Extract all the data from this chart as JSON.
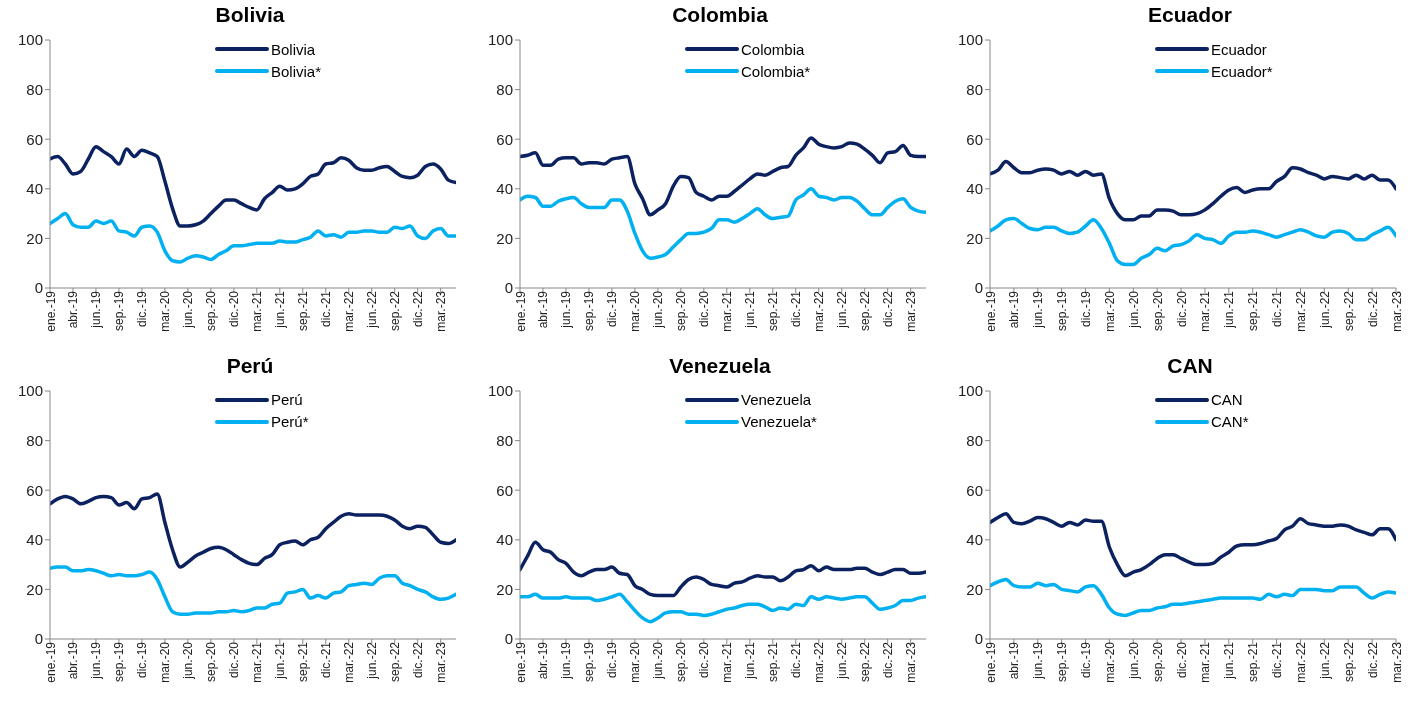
{
  "chart_data": [
    {
      "type": "line",
      "title": "Bolivia",
      "categories": [
        "ene.-19",
        null,
        null,
        "abr.-19",
        null,
        null,
        "jun.-19",
        null,
        null,
        "sep.-19",
        null,
        null,
        "dic.-19",
        null,
        null,
        "mar.-20",
        null,
        null,
        "jun.-20",
        null,
        null,
        "sep.-20",
        null,
        null,
        "dic.-20",
        null,
        null,
        "mar.-21",
        null,
        null,
        "jun.-21",
        null,
        null,
        "sep.-21",
        null,
        null,
        "dic.-21",
        null,
        null,
        "mar.-22",
        null,
        null,
        "jun.-22",
        null,
        null,
        "sep.-22",
        null,
        null,
        "dic.-22",
        null,
        null,
        "mar.-23",
        null,
        null
      ],
      "ylim": [
        0,
        100
      ],
      "yticks": [
        0,
        20,
        40,
        60,
        80,
        100
      ],
      "legend": "top",
      "series": [
        {
          "name": "Bolivia",
          "color": "#0b2160",
          "values": [
            52,
            53,
            50,
            46,
            47,
            52,
            57,
            55,
            53,
            50,
            56,
            53,
            55.5,
            54.5,
            53,
            43,
            32,
            25,
            25,
            25.5,
            27,
            30,
            33,
            35.5,
            35.5,
            34,
            32.5,
            31.5,
            36,
            38.5,
            41,
            39.5,
            40,
            42,
            45,
            46,
            50,
            50.5,
            52.5,
            51.5,
            48.5,
            47.5,
            47.5,
            48.5,
            49,
            47,
            45,
            44.5,
            45.5,
            49,
            50,
            48,
            43.5,
            42.5
          ]
        },
        {
          "name": "Bolivia*",
          "color": "#00b0f0",
          "values": [
            26,
            28,
            30,
            25.5,
            24.5,
            24.5,
            27,
            26,
            27,
            23,
            22.5,
            21,
            24.5,
            25,
            22.5,
            15,
            11,
            10.5,
            12,
            13,
            12.5,
            11.5,
            13.5,
            15,
            17,
            17,
            17.5,
            18,
            18,
            18,
            19,
            18.5,
            18.5,
            19.5,
            20.5,
            23,
            21,
            21.5,
            20.5,
            22.5,
            22.5,
            23,
            23,
            22.5,
            22.5,
            24.5,
            24,
            25,
            21,
            20,
            23,
            24,
            21,
            21
          ]
        }
      ]
    },
    {
      "type": "line",
      "title": "Colombia",
      "categories": [
        "ene.-19",
        null,
        null,
        "abr.-19",
        null,
        null,
        "jun.-19",
        null,
        null,
        "sep.-19",
        null,
        null,
        "dic.-19",
        null,
        null,
        "mar.-20",
        null,
        null,
        "jun.-20",
        null,
        null,
        "sep.-20",
        null,
        null,
        "dic.-20",
        null,
        null,
        "mar.-21",
        null,
        null,
        "jun.-21",
        null,
        null,
        "sep.-21",
        null,
        null,
        "dic.-21",
        null,
        null,
        "mar.-22",
        null,
        null,
        "jun.-22",
        null,
        null,
        "sep.-22",
        null,
        null,
        "dic.-22",
        null,
        null,
        "mar.-23",
        null,
        null
      ],
      "ylim": [
        0,
        100
      ],
      "yticks": [
        0,
        20,
        40,
        60,
        80,
        100
      ],
      "legend": "top",
      "series": [
        {
          "name": "Colombia",
          "color": "#0b2160",
          "values": [
            53,
            53.5,
            54.5,
            49.5,
            49.5,
            52,
            52.5,
            52.5,
            50,
            50.5,
            50.5,
            50,
            52,
            52.5,
            53,
            42,
            36,
            29.5,
            31.5,
            34,
            41,
            45,
            44.5,
            38.5,
            37,
            35.5,
            37,
            37,
            39,
            41.5,
            44,
            46,
            45.5,
            47,
            48.5,
            49,
            53.5,
            56.5,
            60.5,
            58,
            57,
            56.5,
            57,
            58.5,
            58,
            56,
            53.5,
            50.5,
            54.5,
            55,
            57.5,
            53.5,
            53,
            53
          ]
        },
        {
          "name": "Colombia*",
          "color": "#00b0f0",
          "values": [
            35.5,
            37,
            36.5,
            33,
            33,
            35,
            36,
            36.5,
            34,
            32.5,
            32.5,
            32.5,
            35.5,
            35.5,
            31,
            22,
            15,
            12,
            12.5,
            13.5,
            16.5,
            19.5,
            22,
            22,
            22.5,
            24,
            27.5,
            27.5,
            26.5,
            28,
            30,
            32,
            29.5,
            28,
            28.5,
            29,
            35.5,
            37.5,
            40,
            37,
            36.5,
            35.5,
            36.5,
            36.5,
            35,
            32,
            29.5,
            29.5,
            32.5,
            35,
            36,
            32.5,
            31,
            30.5
          ]
        }
      ]
    },
    {
      "type": "line",
      "title": "Ecuador",
      "categories": [
        "ene.-19",
        null,
        null,
        "abr.-19",
        null,
        null,
        "jun.-19",
        null,
        null,
        "sep.-19",
        null,
        null,
        "dic.-19",
        null,
        null,
        "mar.-20",
        null,
        null,
        "jun.-20",
        null,
        null,
        "sep.-20",
        null,
        null,
        "dic.-20",
        null,
        null,
        "mar.-21",
        null,
        null,
        "jun.-21",
        null,
        null,
        "sep.-21",
        null,
        null,
        "dic.-21",
        null,
        null,
        "mar.-22",
        null,
        null,
        "jun.-22",
        null,
        null,
        "sep.-22",
        null,
        null,
        "dic.-22",
        null,
        null,
        "mar.-23"
      ],
      "ylim": [
        0,
        100
      ],
      "yticks": [
        0,
        20,
        40,
        60,
        80,
        100
      ],
      "legend": "top",
      "series": [
        {
          "name": "Ecuador",
          "color": "#0b2160",
          "values": [
            46,
            47.5,
            51,
            48.5,
            46.5,
            46.5,
            47.5,
            48,
            47.5,
            46,
            47,
            45.5,
            47,
            45.5,
            46,
            36,
            30,
            27.5,
            27.5,
            29,
            29,
            31.5,
            31.5,
            31,
            29.5,
            29.5,
            30,
            31.5,
            34,
            37,
            39.5,
            40.5,
            38.5,
            39.5,
            40,
            40,
            43,
            45,
            48.5,
            48,
            46.5,
            45.5,
            44,
            45,
            44.5,
            44,
            45.5,
            44,
            45.5,
            43.5,
            43.5,
            40
          ]
        },
        {
          "name": "Ecuador*",
          "color": "#00b0f0",
          "values": [
            23,
            25,
            27.5,
            28,
            26,
            24,
            23.5,
            24.5,
            24.5,
            23,
            22,
            22.5,
            25,
            27.5,
            24,
            18,
            11,
            9.5,
            9.5,
            12,
            13.5,
            16,
            15,
            17,
            17.5,
            19,
            21.5,
            20,
            19.5,
            18,
            21,
            22.5,
            22.5,
            23,
            22.5,
            21.5,
            20.5,
            21.5,
            22.5,
            23.5,
            22.5,
            21,
            20.5,
            22.5,
            23,
            22,
            19.5,
            19.5,
            21.5,
            23,
            24.5,
            21
          ]
        }
      ]
    },
    {
      "type": "line",
      "title": "Perú",
      "categories": [
        "ene.-19",
        null,
        null,
        "abr.-19",
        null,
        null,
        "jun.-19",
        null,
        null,
        "sep.-19",
        null,
        null,
        "dic.-19",
        null,
        null,
        "mar.-20",
        null,
        null,
        "jun.-20",
        null,
        null,
        "sep.-20",
        null,
        null,
        "dic.-20",
        null,
        null,
        "mar.-21",
        null,
        null,
        "jun.-21",
        null,
        null,
        "sep.-21",
        null,
        null,
        "dic.-21",
        null,
        null,
        "mar.-22",
        null,
        null,
        "jun.-22",
        null,
        null,
        "sep.-22",
        null,
        null,
        "dic.-22",
        null,
        null,
        "mar.-23",
        null,
        null
      ],
      "ylim": [
        0,
        100
      ],
      "yticks": [
        0,
        20,
        40,
        60,
        80,
        100
      ],
      "legend": "top",
      "series": [
        {
          "name": "Perú",
          "color": "#0b2160",
          "values": [
            54.5,
            56.5,
            57.5,
            56.5,
            54.5,
            55.5,
            57,
            57.5,
            57,
            54,
            55,
            52.5,
            56.5,
            57,
            58.5,
            47,
            36,
            29,
            31,
            33.5,
            35,
            36.5,
            37,
            36,
            34,
            32,
            30.5,
            30,
            32.5,
            34,
            38,
            39,
            39.5,
            38,
            40,
            41,
            44.5,
            47,
            49.5,
            50.5,
            50,
            50,
            50,
            50,
            49.5,
            48,
            45.5,
            44.5,
            45.5,
            45,
            42,
            39,
            38.5,
            40
          ]
        },
        {
          "name": "Perú*",
          "color": "#00b0f0",
          "values": [
            28.5,
            29,
            29,
            27.5,
            27.5,
            28,
            27.5,
            26.5,
            25.5,
            26,
            25.5,
            25.5,
            26,
            27,
            24,
            17,
            11,
            10,
            10,
            10.5,
            10.5,
            10.5,
            11,
            11,
            11.5,
            11,
            11.5,
            12.5,
            12.5,
            14,
            14.5,
            18.5,
            19,
            20,
            16.5,
            17.5,
            16.5,
            18.5,
            19,
            21.5,
            22,
            22.5,
            22,
            24.5,
            25.5,
            25.5,
            22.5,
            21.5,
            20,
            19,
            17,
            16,
            16.5,
            18
          ]
        }
      ]
    },
    {
      "type": "line",
      "title": "Venezuela",
      "categories": [
        "ene.-19",
        null,
        null,
        "abr.-19",
        null,
        null,
        "jun.-19",
        null,
        null,
        "sep.-19",
        null,
        null,
        "dic.-19",
        null,
        null,
        "mar.-20",
        null,
        null,
        "jun.-20",
        null,
        null,
        "sep.-20",
        null,
        null,
        "dic.-20",
        null,
        null,
        "mar.-21",
        null,
        null,
        "jun.-21",
        null,
        null,
        "sep.-21",
        null,
        null,
        "dic.-21",
        null,
        null,
        "mar.-22",
        null,
        null,
        "jun.-22",
        null,
        null,
        "sep.-22",
        null,
        null,
        "dic.-22",
        null,
        null,
        "mar.-23",
        null,
        null
      ],
      "ylim": [
        0,
        100
      ],
      "yticks": [
        0,
        20,
        40,
        60,
        80,
        100
      ],
      "legend": "top",
      "series": [
        {
          "name": "Venezuela",
          "color": "#0b2160",
          "values": [
            28,
            33.5,
            39,
            36,
            35,
            32,
            30.5,
            27,
            25.5,
            27,
            28,
            28,
            29,
            26.5,
            26,
            21.5,
            20,
            18,
            17.5,
            17.5,
            17.5,
            21,
            24,
            25,
            24,
            22,
            21.5,
            21,
            22.5,
            23,
            24.5,
            25.5,
            25,
            25,
            23.5,
            25,
            27.5,
            28,
            29.5,
            27.5,
            29,
            28,
            28,
            28,
            28.5,
            28.5,
            27,
            26,
            27,
            28,
            28,
            26.5,
            26.5,
            27
          ]
        },
        {
          "name": "Venezuela*",
          "color": "#00b0f0",
          "values": [
            17,
            17,
            18,
            16.5,
            16.5,
            16.5,
            17,
            16.5,
            16.5,
            16.5,
            15.5,
            16,
            17,
            18,
            15,
            11.5,
            8.5,
            7,
            8.5,
            10.5,
            11,
            11,
            10,
            10,
            9.5,
            10,
            11,
            12,
            12.5,
            13.5,
            14,
            14,
            13,
            11.5,
            12.5,
            12,
            14,
            13.5,
            17,
            16,
            17,
            16.5,
            16,
            16.5,
            17,
            17,
            14.5,
            12,
            12.5,
            13.5,
            15.5,
            15.5,
            16.5,
            17
          ]
        }
      ]
    },
    {
      "type": "line",
      "title": "CAN",
      "categories": [
        "ene.-19",
        null,
        null,
        "abr.-19",
        null,
        null,
        "jun.-19",
        null,
        null,
        "sep.-19",
        null,
        null,
        "dic.-19",
        null,
        null,
        "mar.-20",
        null,
        null,
        "jun.-20",
        null,
        null,
        "sep.-20",
        null,
        null,
        "dic.-20",
        null,
        null,
        "mar.-21",
        null,
        null,
        "jun.-21",
        null,
        null,
        "sep.-21",
        null,
        null,
        "dic.-21",
        null,
        null,
        "mar.-22",
        null,
        null,
        "jun.-22",
        null,
        null,
        "sep.-22",
        null,
        null,
        "dic.-22",
        null,
        null,
        "mar.-23"
      ],
      "ylim": [
        0,
        100
      ],
      "yticks": [
        0,
        20,
        40,
        60,
        80,
        100
      ],
      "legend": "top",
      "series": [
        {
          "name": "CAN",
          "color": "#0b2160",
          "values": [
            47,
            49,
            50.5,
            47,
            46.5,
            47.5,
            49,
            48.5,
            47,
            45.5,
            47,
            46,
            48,
            47.5,
            47.5,
            37,
            30,
            25.5,
            27,
            28,
            30,
            32.5,
            34,
            34,
            32.5,
            31,
            30,
            30,
            30.5,
            33,
            35,
            37.5,
            38,
            38,
            38.5,
            39.5,
            40.5,
            44,
            45.5,
            48.5,
            46.5,
            46,
            45.5,
            45.5,
            46,
            45.5,
            44,
            43,
            42,
            44.5,
            44.5,
            40
          ]
        },
        {
          "name": "CAN*",
          "color": "#00b0f0",
          "values": [
            21.5,
            23,
            24,
            21.5,
            21,
            21,
            22.5,
            21.5,
            22,
            20,
            19.5,
            19,
            21,
            21.5,
            18,
            12.5,
            10,
            9.5,
            10.5,
            11.5,
            11.5,
            12.5,
            13,
            14,
            14,
            14.5,
            15,
            15.5,
            16,
            16.5,
            16.5,
            16.5,
            16.5,
            16.5,
            16,
            18,
            17,
            18,
            17.5,
            20,
            20,
            20,
            19.5,
            19.5,
            21,
            21,
            21,
            18.5,
            16.5,
            18,
            19,
            18.5
          ]
        }
      ]
    }
  ]
}
